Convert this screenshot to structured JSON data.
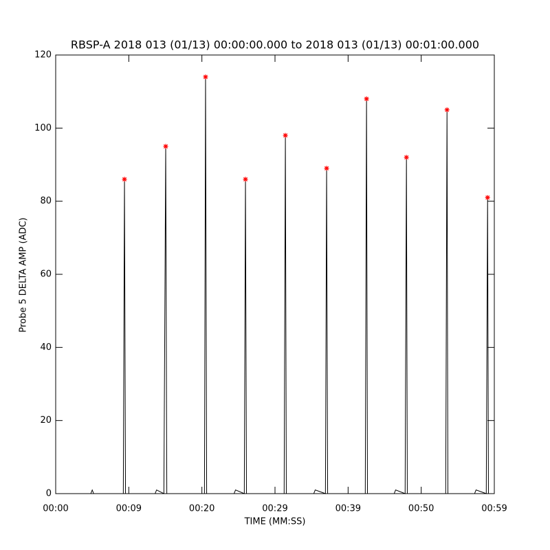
{
  "chart_data": {
    "type": "line",
    "title": "RBSP-A 2018 013 (01/13) 00:00:00.000 to 2018 013 (01/13) 00:01:00.000",
    "x_label": "TIME (MM:SS)",
    "y_label": "Probe 5 DELTA AMP (ADC)",
    "xlim": [
      0,
      60
    ],
    "ylim": [
      0,
      120
    ],
    "xticks": [
      {
        "value": 0,
        "label": "00:00"
      },
      {
        "value": 10,
        "label": "00:09"
      },
      {
        "value": 20,
        "label": "00:20"
      },
      {
        "value": 30,
        "label": "00:29"
      },
      {
        "value": 40,
        "label": "00:39"
      },
      {
        "value": 50,
        "label": "00:50"
      },
      {
        "value": 60,
        "label": "00:59"
      }
    ],
    "yticks": [
      0,
      20,
      40,
      60,
      80,
      100,
      120
    ],
    "grid": false,
    "series": [
      {
        "color": "#000000",
        "marker": "none",
        "x": [
          0,
          4.8,
          5.0,
          5.2,
          9.25,
          9.41,
          9.55,
          13.6,
          13.8,
          14.8,
          15.05,
          15.2,
          20.35,
          20.5,
          20.65,
          24.4,
          24.6,
          25.8,
          25.96,
          26.1,
          31.25,
          31.42,
          31.55,
          35.3,
          35.5,
          36.9,
          37.06,
          37.2,
          42.35,
          42.52,
          42.65,
          46.3,
          46.5,
          47.8,
          47.98,
          48.1,
          53.35,
          53.53,
          53.65,
          57.3,
          57.5,
          58.9,
          59.08,
          59.2,
          60
        ],
        "values": [
          0,
          0,
          1,
          0,
          0,
          86,
          0,
          0,
          1,
          0,
          95,
          0,
          0,
          114,
          0,
          0,
          1,
          0,
          86,
          0,
          0,
          98,
          0,
          0,
          1,
          0,
          89,
          0,
          0,
          108,
          0,
          0,
          1,
          0,
          92,
          0,
          0,
          105,
          0,
          0,
          1,
          0,
          81,
          0,
          0
        ]
      },
      {
        "color": "#ff0000",
        "marker": "asterisk",
        "x": [
          9.41,
          15.05,
          20.5,
          25.96,
          31.42,
          37.06,
          42.52,
          47.98,
          53.53,
          59.08
        ],
        "values": [
          86,
          95,
          114,
          86,
          98,
          89,
          108,
          92,
          105,
          81
        ]
      }
    ]
  }
}
